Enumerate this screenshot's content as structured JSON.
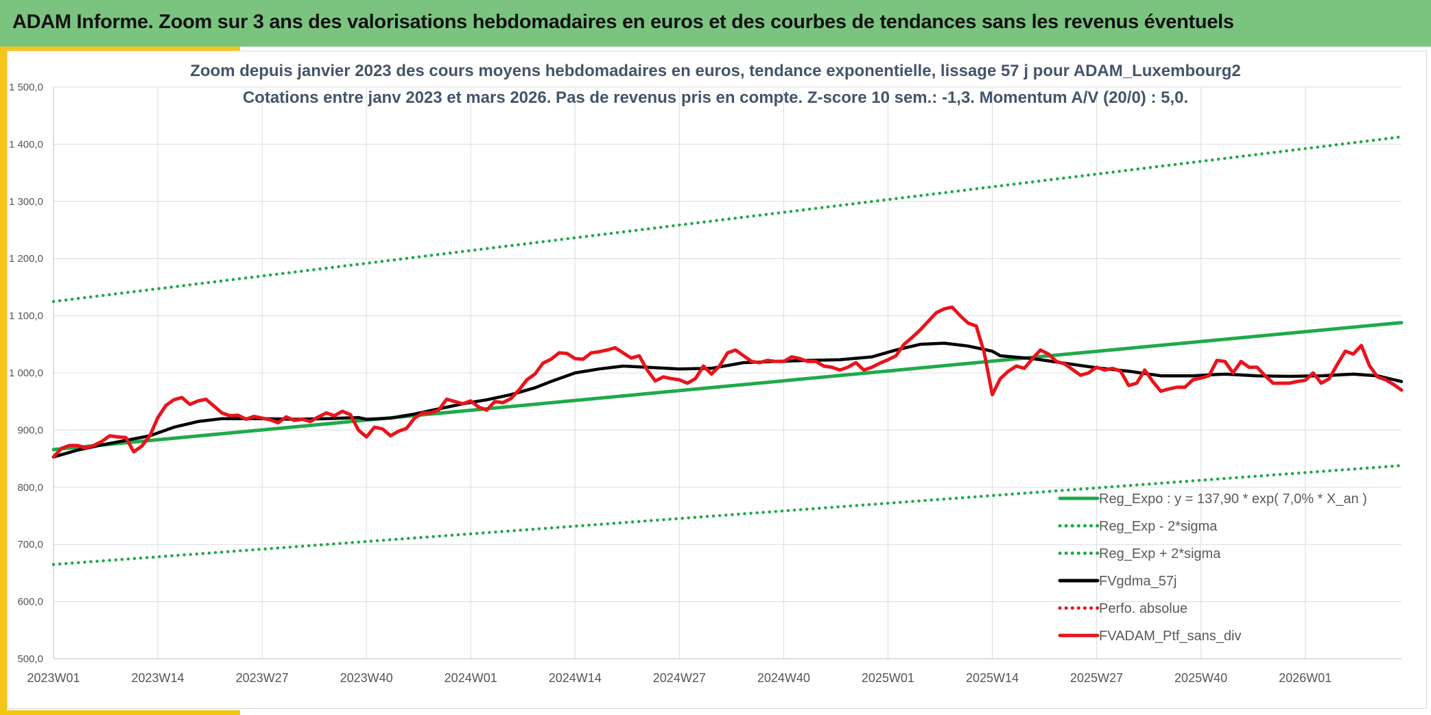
{
  "header": {
    "title": "ADAM Informe. Zoom sur 3 ans des valorisations hebdomadaires en euros et des courbes de tendances sans les revenus éventuels"
  },
  "colors": {
    "header_bg": "#7ac47f",
    "accent": "#f5c518",
    "trend": "#1faa4a",
    "band": "#1faa4a",
    "smooth": "#000000",
    "price": "#e8141b",
    "perfo": "#e8141b"
  },
  "chart_data": {
    "type": "line",
    "title": "Zoom depuis janvier 2023 des cours moyens hebdomadaires en euros, tendance exponentielle, lissage 57 j pour ADAM_Luxembourg2",
    "subtitle": "Cotations entre janv 2023 et mars 2026. Pas de revenus pris en compte. Z-score 10 sem.: -1,3. Momentum A/V (20/0) : 5,0.",
    "xlabel": "",
    "ylabel": "",
    "ylim": [
      500,
      1500
    ],
    "yticks": [
      500,
      600,
      700,
      800,
      900,
      1000,
      1100,
      1200,
      1300,
      1400,
      1500
    ],
    "ytick_labels": [
      "500,0",
      "600,0",
      "700,0",
      "800,0",
      "900,0",
      "1 000,0",
      "1 100,0",
      "1 200,0",
      "1 300,0",
      "1 400,0",
      "1 500,0"
    ],
    "xlim_weeks": [
      0,
      168
    ],
    "xtick_weeks": [
      0,
      13,
      26,
      39,
      52,
      65,
      78,
      91,
      104,
      117,
      130,
      143,
      156
    ],
    "xtick_labels": [
      "2023W01",
      "2023W14",
      "2023W27",
      "2023W40",
      "2024W01",
      "2024W14",
      "2024W27",
      "2024W40",
      "2025W01",
      "2025W14",
      "2025W27",
      "2025W40",
      "2026W01"
    ],
    "grid": true,
    "legend_position": "bottom-right",
    "legend": [
      {
        "label": "Reg_Expo : y = 137,90 * exp( 7,0% *  X_an )",
        "series": "Reg_Expo",
        "style": "solid",
        "color": "#1faa4a"
      },
      {
        "label": "Reg_Exp - 2*sigma",
        "series": "Reg_Exp_minus",
        "style": "dotted",
        "color": "#1faa4a"
      },
      {
        "label": "Reg_Exp + 2*sigma",
        "series": "Reg_Exp_plus",
        "style": "dotted",
        "color": "#1faa4a"
      },
      {
        "label": "FVgdma_57j",
        "series": "FVgdma_57j",
        "style": "solid",
        "color": "#000000"
      },
      {
        "label": "Perfo. absolue",
        "series": "Perfo_absolue",
        "style": "dotted",
        "color": "#e8141b"
      },
      {
        "label": "FVADAM_Ptf_sans_div",
        "series": "FVADAM_Ptf_sans_div",
        "style": "solid",
        "color": "#e8141b"
      }
    ],
    "series": [
      {
        "name": "Reg_Expo",
        "style": "solid",
        "color": "#1faa4a",
        "points": [
          [
            0,
            866
          ],
          [
            168,
            1088
          ]
        ]
      },
      {
        "name": "Reg_Exp - 2*sigma",
        "style": "dotted",
        "color": "#1faa4a",
        "points": [
          [
            0,
            665
          ],
          [
            168,
            838
          ]
        ]
      },
      {
        "name": "Reg_Exp + 2*sigma",
        "style": "dotted",
        "color": "#1faa4a",
        "points": [
          [
            0,
            1125
          ],
          [
            168,
            1413
          ]
        ]
      },
      {
        "name": "FVgdma_57j",
        "style": "solid",
        "color": "#000000",
        "points": [
          [
            0,
            853
          ],
          [
            3,
            865
          ],
          [
            6,
            874
          ],
          [
            9,
            882
          ],
          [
            12,
            890
          ],
          [
            15,
            905
          ],
          [
            18,
            915
          ],
          [
            21,
            920
          ],
          [
            26,
            920
          ],
          [
            30,
            919
          ],
          [
            34,
            920
          ],
          [
            38,
            922
          ],
          [
            39,
            919
          ],
          [
            42,
            921
          ],
          [
            45,
            928
          ],
          [
            48,
            937
          ],
          [
            51,
            946
          ],
          [
            54,
            953
          ],
          [
            57,
            962
          ],
          [
            60,
            974
          ],
          [
            62,
            985
          ],
          [
            65,
            1000
          ],
          [
            68,
            1007
          ],
          [
            71,
            1012
          ],
          [
            74,
            1010
          ],
          [
            78,
            1007
          ],
          [
            82,
            1008
          ],
          [
            86,
            1018
          ],
          [
            90,
            1020
          ],
          [
            94,
            1022
          ],
          [
            98,
            1023
          ],
          [
            102,
            1028
          ],
          [
            105,
            1040
          ],
          [
            108,
            1050
          ],
          [
            111,
            1052
          ],
          [
            114,
            1047
          ],
          [
            117,
            1038
          ],
          [
            118,
            1030
          ],
          [
            122,
            1025
          ],
          [
            126,
            1017
          ],
          [
            130,
            1009
          ],
          [
            134,
            1003
          ],
          [
            138,
            995
          ],
          [
            142,
            995
          ],
          [
            146,
            998
          ],
          [
            150,
            995
          ],
          [
            154,
            994
          ],
          [
            158,
            995
          ],
          [
            162,
            998
          ],
          [
            165,
            995
          ],
          [
            168,
            985
          ]
        ]
      },
      {
        "name": "Perfo. absolue",
        "style": "dotted",
        "color": "#e8141b",
        "points": []
      },
      {
        "name": "FVADAM_Ptf_sans_div",
        "style": "solid",
        "color": "#e8141b",
        "points": [
          [
            0,
            853
          ],
          [
            1,
            868
          ],
          [
            2,
            873
          ],
          [
            3,
            873
          ],
          [
            4,
            869
          ],
          [
            5,
            873
          ],
          [
            6,
            880
          ],
          [
            7,
            890
          ],
          [
            8,
            888
          ],
          [
            9,
            887
          ],
          [
            10,
            862
          ],
          [
            11,
            872
          ],
          [
            12,
            890
          ],
          [
            13,
            922
          ],
          [
            14,
            943
          ],
          [
            15,
            953
          ],
          [
            16,
            957
          ],
          [
            17,
            945
          ],
          [
            18,
            951
          ],
          [
            19,
            954
          ],
          [
            20,
            942
          ],
          [
            21,
            930
          ],
          [
            22,
            925
          ],
          [
            23,
            926
          ],
          [
            24,
            919
          ],
          [
            25,
            924
          ],
          [
            26,
            921
          ],
          [
            27,
            918
          ],
          [
            28,
            913
          ],
          [
            29,
            923
          ],
          [
            30,
            917
          ],
          [
            31,
            919
          ],
          [
            32,
            915
          ],
          [
            33,
            923
          ],
          [
            34,
            930
          ],
          [
            35,
            925
          ],
          [
            36,
            933
          ],
          [
            37,
            927
          ],
          [
            38,
            900
          ],
          [
            39,
            888
          ],
          [
            40,
            905
          ],
          [
            41,
            902
          ],
          [
            42,
            890
          ],
          [
            43,
            898
          ],
          [
            44,
            903
          ],
          [
            45,
            921
          ],
          [
            46,
            930
          ],
          [
            47,
            930
          ],
          [
            48,
            935
          ],
          [
            49,
            954
          ],
          [
            50,
            950
          ],
          [
            51,
            946
          ],
          [
            52,
            951
          ],
          [
            53,
            940
          ],
          [
            54,
            935
          ],
          [
            55,
            950
          ],
          [
            56,
            948
          ],
          [
            57,
            955
          ],
          [
            58,
            970
          ],
          [
            59,
            988
          ],
          [
            60,
            998
          ],
          [
            61,
            1017
          ],
          [
            62,
            1024
          ],
          [
            63,
            1035
          ],
          [
            64,
            1034
          ],
          [
            65,
            1025
          ],
          [
            66,
            1024
          ],
          [
            67,
            1035
          ],
          [
            68,
            1037
          ],
          [
            69,
            1040
          ],
          [
            70,
            1044
          ],
          [
            71,
            1035
          ],
          [
            72,
            1026
          ],
          [
            73,
            1030
          ],
          [
            74,
            1005
          ],
          [
            75,
            986
          ],
          [
            76,
            993
          ],
          [
            77,
            990
          ],
          [
            78,
            988
          ],
          [
            79,
            982
          ],
          [
            80,
            990
          ],
          [
            81,
            1012
          ],
          [
            82,
            998
          ],
          [
            83,
            1012
          ],
          [
            84,
            1035
          ],
          [
            85,
            1040
          ],
          [
            86,
            1030
          ],
          [
            87,
            1020
          ],
          [
            88,
            1018
          ],
          [
            89,
            1022
          ],
          [
            90,
            1020
          ],
          [
            91,
            1020
          ],
          [
            92,
            1028
          ],
          [
            93,
            1025
          ],
          [
            94,
            1020
          ],
          [
            95,
            1020
          ],
          [
            96,
            1012
          ],
          [
            97,
            1010
          ],
          [
            98,
            1005
          ],
          [
            99,
            1010
          ],
          [
            100,
            1018
          ],
          [
            101,
            1005
          ],
          [
            102,
            1010
          ],
          [
            103,
            1017
          ],
          [
            104,
            1023
          ],
          [
            105,
            1030
          ],
          [
            106,
            1050
          ],
          [
            107,
            1062
          ],
          [
            108,
            1075
          ],
          [
            109,
            1090
          ],
          [
            110,
            1105
          ],
          [
            111,
            1112
          ],
          [
            112,
            1115
          ],
          [
            113,
            1100
          ],
          [
            114,
            1087
          ],
          [
            115,
            1082
          ],
          [
            116,
            1035
          ],
          [
            117,
            962
          ],
          [
            118,
            990
          ],
          [
            119,
            1003
          ],
          [
            120,
            1012
          ],
          [
            121,
            1008
          ],
          [
            122,
            1025
          ],
          [
            123,
            1040
          ],
          [
            124,
            1033
          ],
          [
            125,
            1020
          ],
          [
            126,
            1016
          ],
          [
            127,
            1006
          ],
          [
            128,
            996
          ],
          [
            129,
            1000
          ],
          [
            130,
            1010
          ],
          [
            131,
            1005
          ],
          [
            132,
            1008
          ],
          [
            133,
            1003
          ],
          [
            134,
            978
          ],
          [
            135,
            982
          ],
          [
            136,
            1005
          ],
          [
            137,
            985
          ],
          [
            138,
            968
          ],
          [
            139,
            972
          ],
          [
            140,
            975
          ],
          [
            141,
            975
          ],
          [
            142,
            988
          ],
          [
            143,
            991
          ],
          [
            144,
            995
          ],
          [
            145,
            1022
          ],
          [
            146,
            1020
          ],
          [
            147,
            1000
          ],
          [
            148,
            1020
          ],
          [
            149,
            1010
          ],
          [
            150,
            1010
          ],
          [
            151,
            995
          ],
          [
            152,
            982
          ],
          [
            153,
            982
          ],
          [
            154,
            982
          ],
          [
            155,
            985
          ],
          [
            156,
            987
          ],
          [
            157,
            1000
          ],
          [
            158,
            982
          ],
          [
            159,
            990
          ],
          [
            160,
            1015
          ],
          [
            161,
            1038
          ],
          [
            162,
            1033
          ],
          [
            163,
            1048
          ],
          [
            164,
            1013
          ],
          [
            165,
            993
          ],
          [
            166,
            988
          ],
          [
            167,
            980
          ],
          [
            168,
            970
          ]
        ]
      }
    ]
  }
}
